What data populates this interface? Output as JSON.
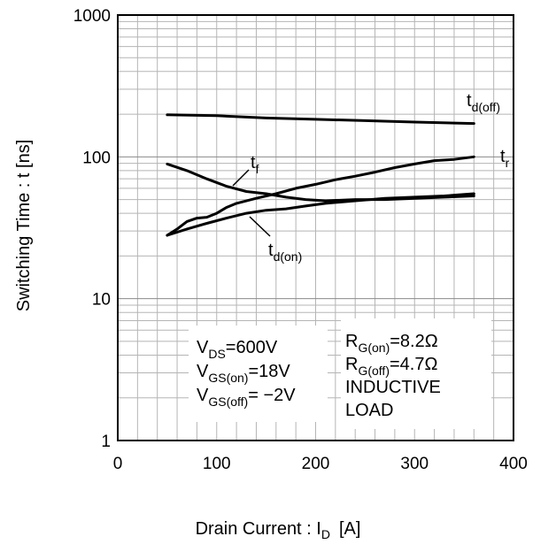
{
  "chart_data": {
    "type": "line",
    "xlabel": "Drain Current : I",
    "xlabel_sub": "D",
    "xlabel_unit": "[A]",
    "ylabel": "Switching Time : t [ns]",
    "xlim": [
      0,
      400
    ],
    "ylim": [
      1,
      1000
    ],
    "y_scale": "log",
    "grid": true,
    "x_ticks": [
      "0",
      "100",
      "200",
      "300",
      "400"
    ],
    "y_ticks": [
      "1",
      "10",
      "100",
      "1000"
    ],
    "series": [
      {
        "name": "t",
        "sub": "d(off)",
        "color": "#000000",
        "x": [
          50,
          100,
          150,
          200,
          250,
          300,
          360
        ],
        "y": [
          198,
          195,
          188,
          184,
          180,
          176,
          172
        ]
      },
      {
        "name": "t",
        "sub": "r",
        "color": "#000000",
        "x": [
          50,
          60,
          70,
          80,
          90,
          100,
          110,
          120,
          140,
          160,
          180,
          200,
          220,
          240,
          260,
          280,
          300,
          320,
          340,
          360
        ],
        "y": [
          28,
          31,
          35,
          37,
          37.5,
          40,
          44,
          47,
          51,
          55,
          60,
          64,
          69,
          73,
          78,
          84,
          89,
          94,
          96,
          100
        ]
      },
      {
        "name": "t",
        "sub": "f",
        "color": "#000000",
        "x": [
          50,
          70,
          90,
          110,
          130,
          150,
          170,
          190,
          210,
          240,
          270,
          300,
          330,
          360
        ],
        "y": [
          89,
          80,
          70,
          62,
          57,
          55,
          52,
          50,
          49,
          50,
          50,
          51,
          52,
          53
        ]
      },
      {
        "name": "t",
        "sub": "d(on)",
        "color": "#000000",
        "x": [
          50,
          70,
          90,
          110,
          130,
          150,
          170,
          190,
          210,
          240,
          270,
          300,
          330,
          360
        ],
        "y": [
          28,
          31,
          34,
          37,
          40,
          42,
          43,
          45,
          47,
          49,
          51,
          52,
          53,
          55
        ]
      }
    ],
    "annotations": {
      "left": [
        {
          "main": "V",
          "sub": "DS",
          "rest": "=600V"
        },
        {
          "main": "V",
          "sub": "GS(on)",
          "rest": "=18V"
        },
        {
          "main": "V",
          "sub": "GS(off)",
          "rest": "= −2V"
        }
      ],
      "right": [
        {
          "main": "R",
          "sub": "G(on)",
          "rest": "=8.2Ω"
        },
        {
          "main": "R",
          "sub": "G(off)",
          "rest": "=4.7Ω"
        },
        {
          "main": "INDUCTIVE",
          "sub": "",
          "rest": ""
        },
        {
          "main": "LOAD",
          "sub": "",
          "rest": ""
        }
      ]
    }
  }
}
